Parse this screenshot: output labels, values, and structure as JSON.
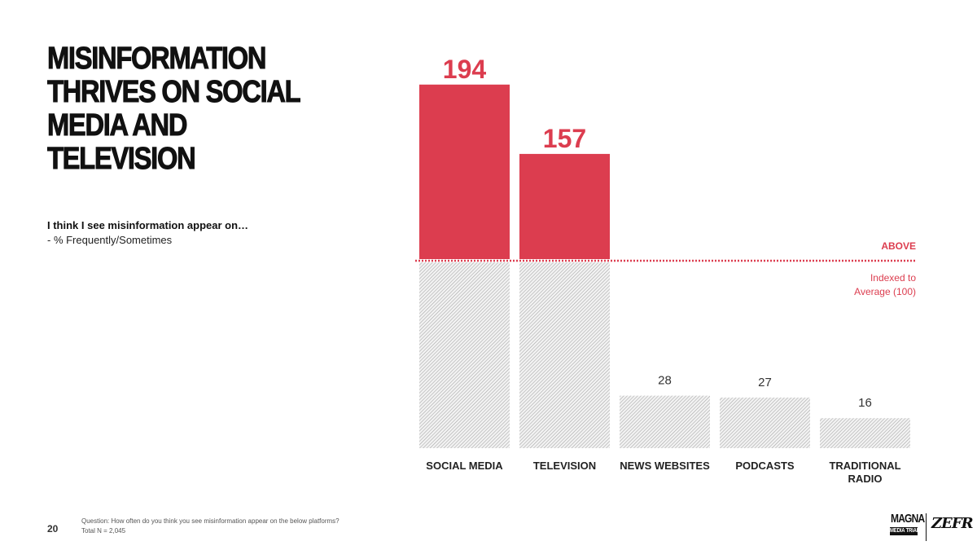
{
  "slide": {
    "title_lines": [
      "MISINFORMATION",
      "THRIVES ON SOCIAL",
      "MEDIA AND",
      "TELEVISION"
    ],
    "question_intro": "I think I see misinformation appear on…",
    "question_sub": "- % Frequently/Sometimes",
    "page_number": "20",
    "footnote_question": "Question: How often do you think you see misinformation appear on the below platforms?",
    "footnote_total": "Total N = 2,045",
    "logos": {
      "magna_top": "MAGNA",
      "magna_bottom": "MEDIA TRIALS",
      "zefr": "ZEFR"
    }
  },
  "chart_data": {
    "type": "bar",
    "categories": [
      "SOCIAL MEDIA",
      "TELEVISION",
      "NEWS WEBSITES",
      "PODCASTS",
      "TRADITIONAL RADIO"
    ],
    "category_label_lines": [
      [
        "SOCIAL MEDIA"
      ],
      [
        "TELEVISION"
      ],
      [
        "NEWS WEBSITES"
      ],
      [
        "PODCASTS"
      ],
      [
        "TRADITIONAL",
        "RADIO"
      ]
    ],
    "values": [
      194,
      157,
      28,
      27,
      16
    ],
    "value_labels": [
      "194",
      "157",
      "28",
      "27",
      "16"
    ],
    "baseline": 100,
    "ylim": [
      0,
      200
    ],
    "above_label": "ABOVE",
    "baseline_label_lines": [
      "Indexed to",
      "Average (100)"
    ],
    "colors": {
      "above": "#dc3d4f",
      "below_pattern_bg": "#f3f3f3",
      "below_pattern_line": "#a8a8a8",
      "baseline": "#dc3d4f",
      "above_label": "#dc3d4f",
      "small_value_label": "#333333"
    }
  }
}
